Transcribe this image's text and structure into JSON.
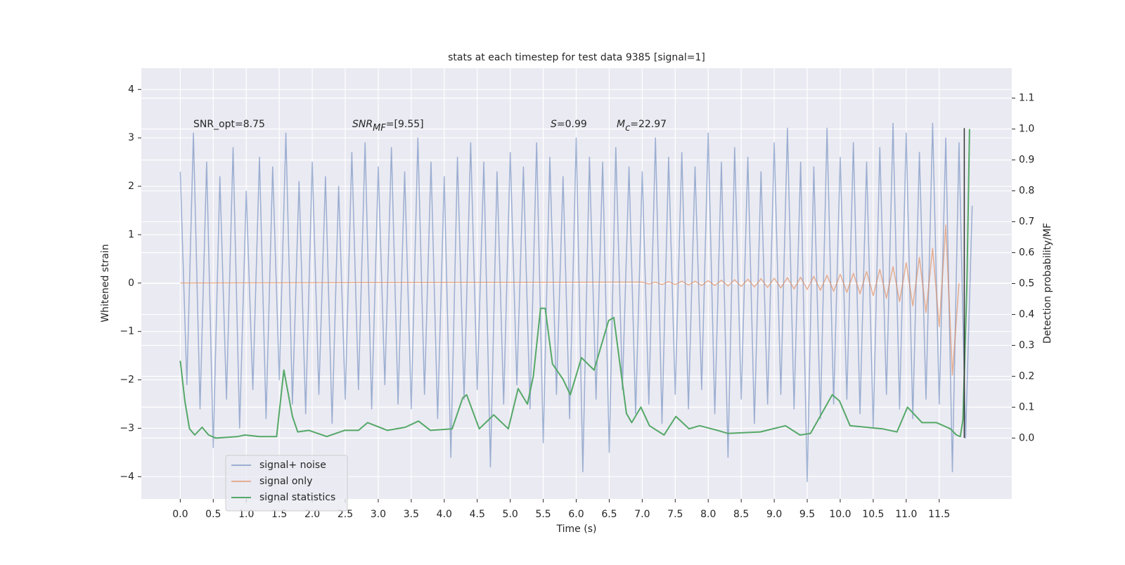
{
  "chart_data": {
    "type": "line",
    "title": "stats at each timestep for test data 9385 [signal=1]",
    "xlabel": "Time (s)",
    "ylabel": "Whitened strain",
    "y2label": "Detection probability/MF",
    "background": "#eaeaf2",
    "grid": true,
    "legend": "lower left",
    "xlim": [
      -0.59,
      12.6
    ],
    "ylim": [
      -4.46,
      4.44
    ],
    "y2lim": [
      -0.197,
      1.197
    ],
    "xticks": [
      {
        "value": 0,
        "label": "0.0"
      },
      0.5,
      {
        "value": 1,
        "label": "1.0"
      },
      1.5,
      {
        "value": 2,
        "label": "2.0"
      },
      2.5,
      {
        "value": 3,
        "label": "3.0"
      },
      3.5,
      {
        "value": 4,
        "label": "4.0"
      },
      4.5,
      {
        "value": 5,
        "label": "5.0"
      },
      5.5,
      {
        "value": 6,
        "label": "6.0"
      },
      6.5,
      {
        "value": 7,
        "label": "7.0"
      },
      7.5,
      {
        "value": 8,
        "label": "8.0"
      },
      8.5,
      {
        "value": 9,
        "label": "9.0"
      },
      9.5,
      {
        "value": 10,
        "label": "10.0"
      },
      10.5,
      {
        "value": 11,
        "label": "11.0"
      },
      11.5
    ],
    "yticks": [
      {
        "value": -4,
        "label": "−4"
      },
      {
        "value": -3,
        "label": "−3"
      },
      {
        "value": -2,
        "label": "−2"
      },
      {
        "value": -1,
        "label": "−1"
      },
      0,
      1,
      2,
      3,
      4
    ],
    "y2ticks": [
      {
        "value": 0,
        "label": "0.0"
      },
      0.1,
      0.2,
      0.3,
      0.4,
      0.5,
      0.6,
      0.7,
      0.8,
      0.9,
      {
        "value": 1,
        "label": "1.0"
      },
      1.1
    ],
    "annotations": [
      [
        {
          "text": "SNR_opt=8.75"
        }
      ],
      [
        {
          "text": "SNR",
          "italic": true
        },
        {
          "text": "MF",
          "italic": true,
          "sub": true
        },
        {
          "text": "=[9.55]"
        }
      ],
      [
        {
          "text": "S",
          "italic": true
        },
        {
          "text": "=0.99"
        }
      ],
      [
        {
          "text": "M",
          "italic": true
        },
        {
          "text": "c",
          "italic": true,
          "sub": true
        },
        {
          "text": "=22.97"
        }
      ]
    ],
    "vline": {
      "x": 11.88,
      "ymin": -3.2,
      "ymax": 3.2,
      "color": "#333333"
    },
    "series": [
      {
        "name": "signal+ noise",
        "color": "#4c72b0",
        "opacity": 0.5,
        "x": [
          0,
          0.1,
          0.2,
          0.3,
          0.4,
          0.5,
          0.6,
          0.7,
          0.8,
          0.9,
          1,
          1.1,
          1.2,
          1.3,
          1.4,
          1.5,
          1.6,
          1.7,
          1.8,
          1.9,
          2,
          2.1,
          2.2,
          2.3,
          2.4,
          2.5,
          2.6,
          2.7,
          2.8,
          2.9,
          3,
          3.1,
          3.2,
          3.3,
          3.4,
          3.5,
          3.6,
          3.7,
          3.8,
          3.9,
          4,
          4.1,
          4.2,
          4.3,
          4.4,
          4.5,
          4.6,
          4.7,
          4.8,
          4.9,
          5,
          5.1,
          5.2,
          5.3,
          5.4,
          5.5,
          5.6,
          5.7,
          5.8,
          5.9,
          6,
          6.1,
          6.2,
          6.3,
          6.4,
          6.5,
          6.6,
          6.7,
          6.8,
          6.9,
          7,
          7.1,
          7.2,
          7.3,
          7.4,
          7.5,
          7.6,
          7.7,
          7.8,
          7.9,
          8,
          8.1,
          8.2,
          8.3,
          8.4,
          8.5,
          8.6,
          8.7,
          8.8,
          8.9,
          9,
          9.1,
          9.2,
          9.3,
          9.4,
          9.5,
          9.6,
          9.7,
          9.8,
          9.9,
          10,
          10.1,
          10.2,
          10.3,
          10.4,
          10.5,
          10.6,
          10.7,
          10.8,
          10.9,
          11,
          11.1,
          11.2,
          11.3,
          11.4,
          11.5,
          11.6,
          11.7,
          11.8,
          11.9,
          12
        ],
        "values": [
          2.3,
          -2.1,
          3.1,
          -2.6,
          2.5,
          -3.4,
          2.2,
          -2.4,
          2.8,
          -3.0,
          1.9,
          -2.2,
          2.6,
          -2.8,
          2.4,
          -2.0,
          3.1,
          -2.5,
          2.1,
          -2.7,
          2.5,
          -2.3,
          2.2,
          -2.9,
          2.0,
          -2.4,
          2.7,
          -2.2,
          2.9,
          -2.6,
          2.4,
          -2.1,
          2.8,
          -2.5,
          2.3,
          -2.6,
          3.0,
          -2.3,
          2.5,
          -2.8,
          2.2,
          -3.6,
          2.6,
          -2.4,
          2.9,
          -2.2,
          2.5,
          -3.8,
          2.3,
          -2.5,
          2.7,
          -2.1,
          2.4,
          -2.6,
          2.9,
          -3.3,
          2.6,
          -2.3,
          2.2,
          -2.8,
          3.0,
          -3.9,
          2.6,
          -2.4,
          2.5,
          -3.5,
          2.8,
          -2.2,
          2.4,
          -2.7,
          2.3,
          -2.5,
          3.0,
          -2.9,
          2.6,
          -2.3,
          2.7,
          -2.6,
          2.4,
          -2.2,
          3.1,
          -2.7,
          2.5,
          -3.6,
          2.8,
          -2.4,
          2.6,
          -2.9,
          2.3,
          -2.5,
          2.9,
          -2.3,
          3.2,
          -2.6,
          2.5,
          -4.1,
          2.4,
          -2.8,
          3.2,
          -2.5,
          2.6,
          -2.4,
          2.9,
          -2.7,
          2.5,
          -3.0,
          2.8,
          -2.3,
          3.3,
          -2.6,
          3.1,
          -2.8,
          2.7,
          -2.4,
          3.3,
          -2.5,
          3.0,
          -3.9,
          2.9,
          -3.2,
          1.6
        ]
      },
      {
        "name": "signal only",
        "color": "#dd8452",
        "opacity": 0.6,
        "x": [
          0,
          7,
          7.1,
          7.2,
          7.3,
          7.4,
          7.5,
          7.6,
          7.7,
          7.8,
          7.9,
          8,
          8.1,
          8.2,
          8.3,
          8.4,
          8.5,
          8.6,
          8.7,
          8.8,
          8.9,
          9,
          9.1,
          9.2,
          9.3,
          9.4,
          9.5,
          9.6,
          9.7,
          9.8,
          9.9,
          10,
          10.1,
          10.2,
          10.3,
          10.4,
          10.5,
          10.6,
          10.7,
          10.8,
          10.9,
          11,
          11.1,
          11.2,
          11.3,
          11.4,
          11.5,
          11.6,
          11.7,
          11.8
        ],
        "values": [
          0,
          0.02,
          -0.02,
          0.02,
          -0.03,
          0.03,
          -0.03,
          0.04,
          -0.04,
          0.04,
          -0.05,
          0.05,
          -0.05,
          0.06,
          -0.06,
          0.07,
          -0.07,
          0.08,
          -0.08,
          0.09,
          -0.09,
          0.1,
          -0.1,
          0.11,
          -0.12,
          0.12,
          -0.13,
          0.14,
          -0.15,
          0.16,
          -0.17,
          0.18,
          -0.19,
          0.2,
          -0.22,
          0.24,
          -0.26,
          0.28,
          -0.31,
          0.34,
          -0.38,
          0.42,
          -0.47,
          0.53,
          -0.61,
          0.72,
          -0.9,
          1.2,
          -1.9,
          0
        ]
      },
      {
        "name": "signal statistics",
        "color": "#55a868",
        "opacity": 1,
        "axis": "y2",
        "x": [
          0,
          0.07,
          0.14,
          0.22,
          0.33,
          0.43,
          0.54,
          0.87,
          0.98,
          1.2,
          1.46,
          1.57,
          1.7,
          1.78,
          1.95,
          2.22,
          2.49,
          2.7,
          2.84,
          3.14,
          3.41,
          3.61,
          3.79,
          4.12,
          4.28,
          4.34,
          4.53,
          4.75,
          4.97,
          5.12,
          5.26,
          5.35,
          5.46,
          5.53,
          5.64,
          5.8,
          5.91,
          6.08,
          6.27,
          6.49,
          6.57,
          6.76,
          6.84,
          6.98,
          7.11,
          7.33,
          7.51,
          7.71,
          7.87,
          8.14,
          8.3,
          8.79,
          9.17,
          9.39,
          9.55,
          9.88,
          9.99,
          10.15,
          10.64,
          10.86,
          11.02,
          11.24,
          11.46,
          11.67,
          11.76,
          11.82,
          11.86,
          11.92,
          11.96
        ],
        "values": [
          0.25,
          0.12,
          0.03,
          0.01,
          0.035,
          0.01,
          0,
          0.005,
          0.01,
          0.005,
          0.005,
          0.22,
          0.07,
          0.02,
          0.025,
          0.005,
          0.025,
          0.025,
          0.05,
          0.025,
          0.035,
          0.055,
          0.025,
          0.03,
          0.13,
          0.14,
          0.03,
          0.075,
          0.03,
          0.16,
          0.11,
          0.2,
          0.42,
          0.42,
          0.24,
          0.19,
          0.14,
          0.26,
          0.22,
          0.38,
          0.39,
          0.08,
          0.05,
          0.1,
          0.04,
          0.01,
          0.07,
          0.03,
          0.04,
          0.025,
          0.015,
          0.02,
          0.04,
          0.01,
          0.015,
          0.14,
          0.12,
          0.04,
          0.03,
          0.02,
          0.1,
          0.05,
          0.05,
          0.03,
          0.01,
          0.005,
          0.06,
          0.5,
          1.0
        ]
      }
    ]
  }
}
